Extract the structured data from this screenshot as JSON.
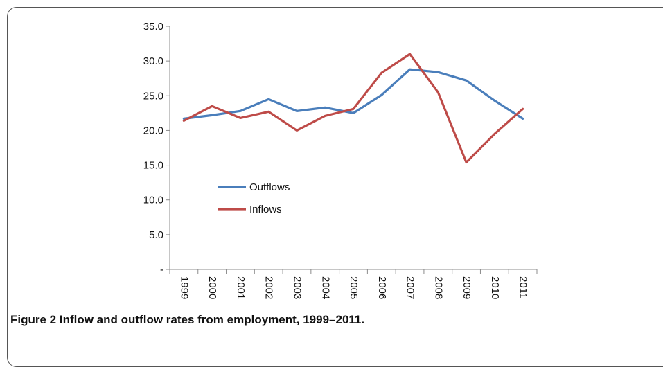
{
  "chart_data": {
    "type": "line",
    "categories": [
      "1999",
      "2000",
      "2001",
      "2002",
      "2003",
      "2004",
      "2005",
      "2006",
      "2007",
      "2008",
      "2009",
      "2010",
      "2011"
    ],
    "series": [
      {
        "name": "Outflows",
        "color": "#4a7ebb",
        "values": [
          21.7,
          22.2,
          22.8,
          24.5,
          22.8,
          23.3,
          22.5,
          25.1,
          28.8,
          28.4,
          27.2,
          24.3,
          21.7
        ]
      },
      {
        "name": "Inflows",
        "color": "#be4b48",
        "values": [
          21.4,
          23.5,
          21.8,
          22.7,
          20.0,
          22.1,
          23.1,
          28.3,
          31.0,
          25.5,
          15.4,
          19.5,
          23.1
        ]
      }
    ],
    "yticks": [
      "-",
      "5.0",
      "10.0",
      "15.0",
      "20.0",
      "25.0",
      "30.0",
      "35.0"
    ],
    "ylim": [
      0,
      35
    ],
    "grid": false,
    "legend": "middle-left"
  },
  "caption": {
    "label": "Figure 2",
    "text": "Inflow and outflow rates from employment, 1999–2011."
  }
}
